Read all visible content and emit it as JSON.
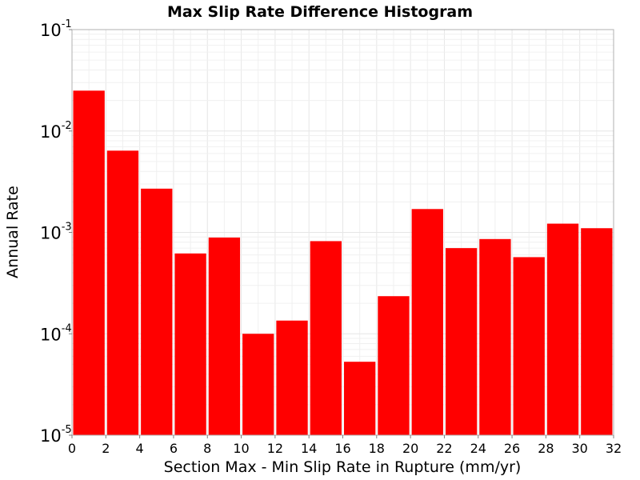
{
  "chart_data": {
    "type": "bar",
    "title": "Max Slip Rate Difference Histogram",
    "xlabel": "Section Max - Min Slip Rate in Rupture (mm/yr)",
    "ylabel": "Annual Rate",
    "y_scale": "log",
    "xlim": [
      0,
      32
    ],
    "ylim": [
      1e-05,
      0.1
    ],
    "x_ticks": [
      0,
      2,
      4,
      6,
      8,
      10,
      12,
      14,
      16,
      18,
      20,
      22,
      24,
      26,
      28,
      30,
      32
    ],
    "x_tick_labels": [
      "0",
      "2",
      "4",
      "6",
      "8",
      "10",
      "12",
      "14",
      "16",
      "18",
      "20",
      "22",
      "24",
      "26",
      "28",
      "30",
      "32"
    ],
    "y_ticks": [
      {
        "base": "10",
        "exp": "-1",
        "value": 0.1
      },
      {
        "base": "10",
        "exp": "-2",
        "value": 0.01
      },
      {
        "base": "10",
        "exp": "-3",
        "value": 0.001
      },
      {
        "base": "10",
        "exp": "-4",
        "value": 0.0001
      },
      {
        "base": "10",
        "exp": "-5",
        "value": 1e-05
      }
    ],
    "bin_width": 2,
    "bin_starts": [
      0,
      2,
      4,
      6,
      8,
      10,
      12,
      14,
      16,
      18,
      20,
      22,
      24,
      26,
      28,
      30
    ],
    "values": [
      0.025,
      0.0064,
      0.0027,
      0.00062,
      0.00089,
      0.0001,
      0.000135,
      0.00082,
      5.3e-05,
      0.000235,
      0.0017,
      0.0007,
      0.00086,
      0.00057,
      0.00122,
      0.0011
    ],
    "bar_color": "#ff0000",
    "grid": true,
    "legend": "none"
  }
}
